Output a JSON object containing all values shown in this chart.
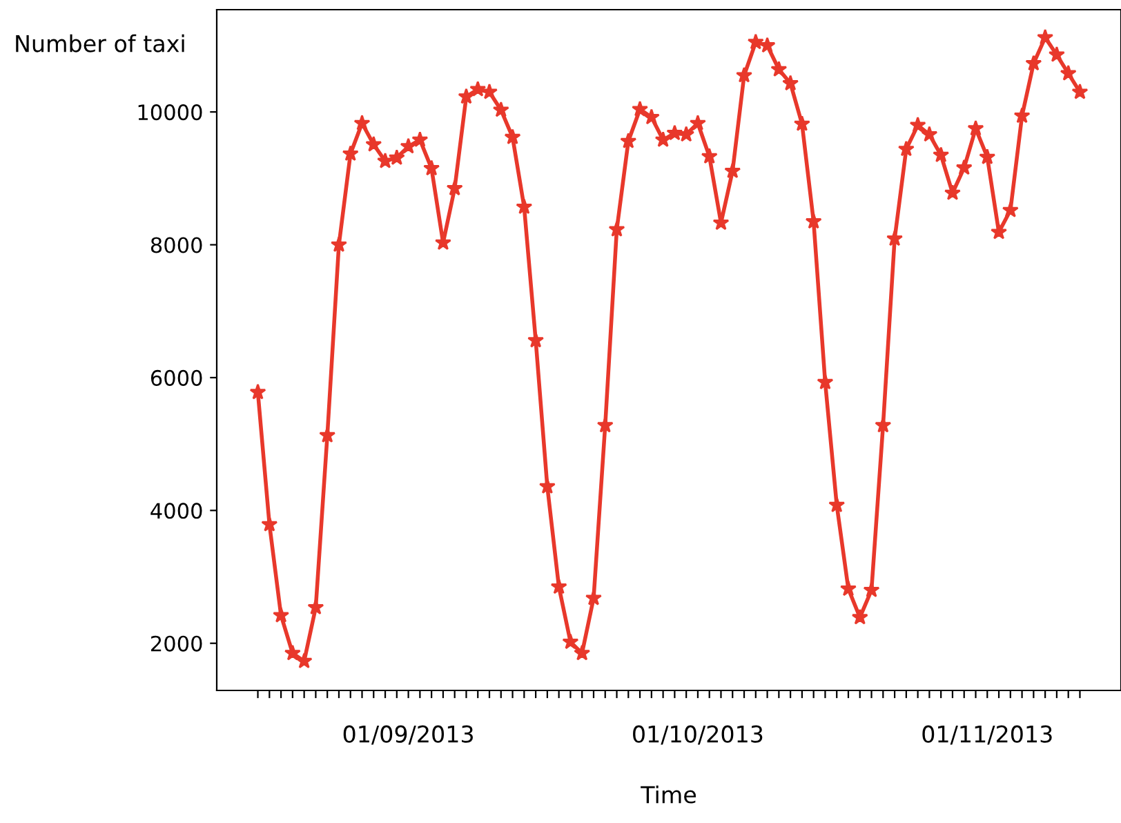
{
  "chart_data": {
    "type": "line",
    "xlabel": "Time",
    "ylabel": "Number of taxi",
    "categories": [
      null,
      null,
      null,
      null,
      null,
      null,
      null,
      null,
      null,
      null,
      null,
      null,
      null,
      "01/09/2013",
      null,
      null,
      null,
      null,
      null,
      null,
      null,
      null,
      null,
      null,
      null,
      null,
      null,
      null,
      null,
      null,
      null,
      null,
      null,
      null,
      null,
      null,
      null,
      null,
      "01/10/2013",
      null,
      null,
      null,
      null,
      null,
      null,
      null,
      null,
      null,
      null,
      null,
      null,
      null,
      null,
      null,
      null,
      null,
      null,
      null,
      null,
      null,
      null,
      null,
      null,
      "01/11/2013",
      null,
      null,
      null,
      null,
      null,
      null,
      null,
      null
    ],
    "series": [
      {
        "color": "#e8382b",
        "values": [
          5780,
          3790,
          2420,
          1850,
          1730,
          2540,
          5130,
          8000,
          9370,
          9830,
          9510,
          9260,
          9310,
          9480,
          9580,
          9150,
          8030,
          8850,
          10230,
          10340,
          10300,
          10030,
          9620,
          8570,
          6560,
          4360,
          2850,
          2020,
          1850,
          2680,
          5280,
          8230,
          9560,
          10040,
          9920,
          9580,
          9680,
          9660,
          9830,
          9330,
          8330,
          9110,
          10550,
          11050,
          11000,
          10640,
          10430,
          9820,
          8350,
          5930,
          4080,
          2820,
          2390,
          2800,
          5280,
          8090,
          9440,
          9800,
          9660,
          9350,
          8780,
          9160,
          9750,
          9320,
          8190,
          8520,
          9940,
          10730,
          11120,
          10860,
          10580,
          10300
        ]
      }
    ],
    "ylim": [
      1290,
      11540
    ],
    "yticks": [
      2000,
      4000,
      6000,
      8000,
      10000
    ],
    "marker": "star",
    "line_style": "solid",
    "grid": false,
    "legend": false
  }
}
